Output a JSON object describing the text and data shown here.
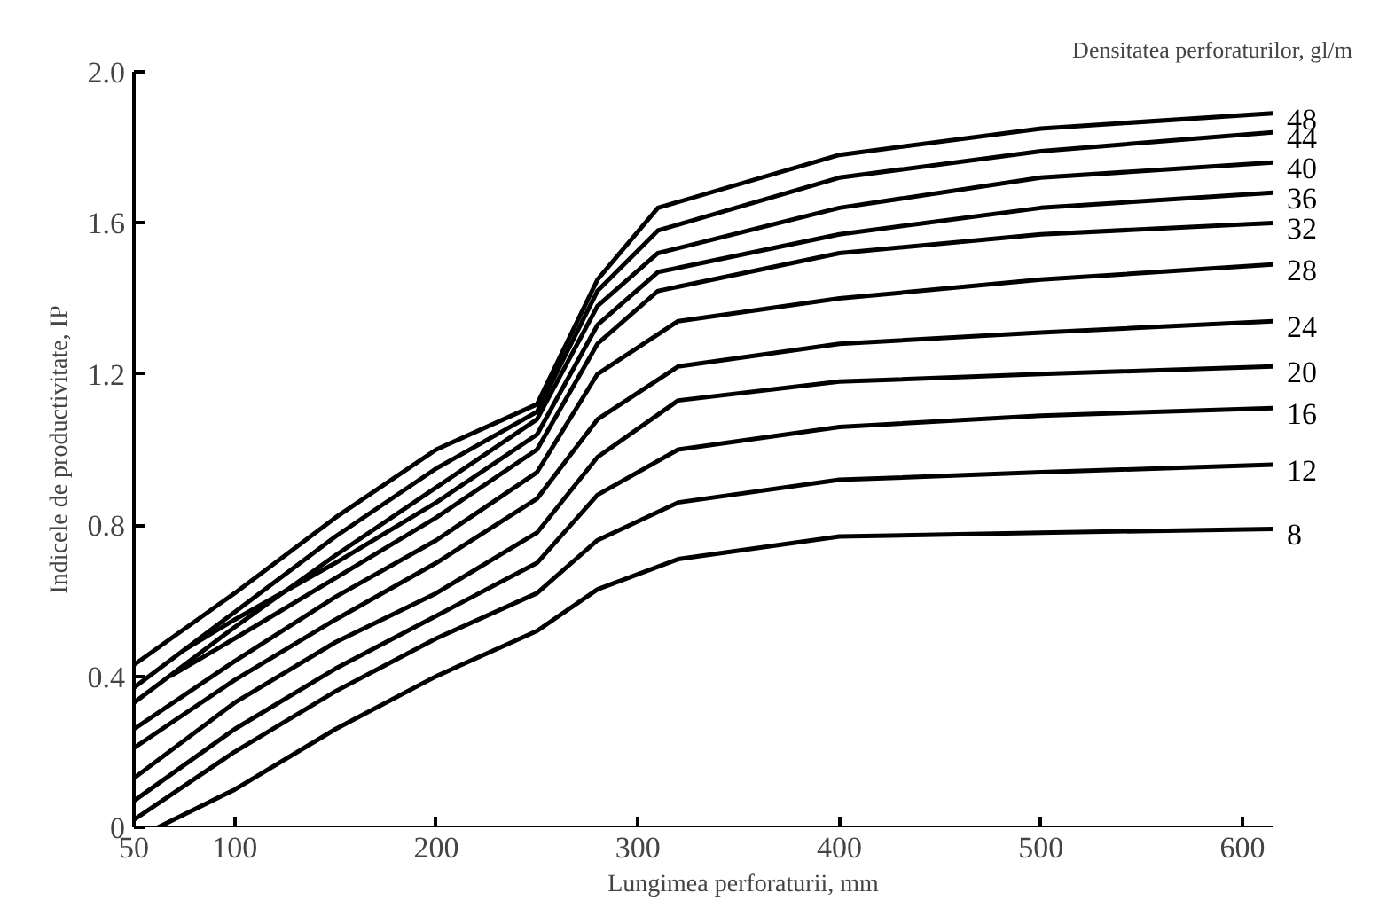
{
  "chart_data": {
    "type": "line",
    "xlabel": "Lungimea perforaturii, mm",
    "ylabel": "Indicele de productivitate, IP",
    "legend_title": "Densitatea perforaturilor, gl/m",
    "xlim": [
      50,
      615
    ],
    "xticks": [
      50,
      100,
      200,
      300,
      400,
      500,
      600
    ],
    "ylim": [
      0,
      2.0
    ],
    "yticks": [
      0,
      0.4,
      0.8,
      1.2,
      1.6,
      {
        "value": 2.0,
        "label": "2.0"
      }
    ],
    "grid": false,
    "line_style": "solid",
    "series": [
      {
        "name": "48",
        "color": "#000000",
        "x": [
          50,
          100,
          150,
          200,
          250,
          280,
          310,
          400,
          500,
          615
        ],
        "values": [
          0.43,
          0.62,
          0.82,
          1.0,
          1.12,
          1.45,
          1.64,
          1.78,
          1.85,
          1.89
        ]
      },
      {
        "name": "44",
        "color": "#000000",
        "x": [
          50,
          100,
          150,
          200,
          250,
          280,
          310,
          400,
          500,
          615
        ],
        "values": [
          0.37,
          0.57,
          0.77,
          0.95,
          1.1,
          1.42,
          1.58,
          1.72,
          1.79,
          1.84
        ]
      },
      {
        "name": "40",
        "color": "#000000",
        "x": [
          50,
          100,
          150,
          200,
          250,
          280,
          310,
          400,
          500,
          615
        ],
        "values": [
          0.33,
          0.53,
          0.72,
          0.9,
          1.08,
          1.38,
          1.52,
          1.64,
          1.72,
          1.76
        ]
      },
      {
        "name": "36",
        "color": "#000000",
        "x": [
          75,
          100,
          150,
          200,
          250,
          280,
          310,
          400,
          500,
          615
        ],
        "values": [
          0.47,
          0.55,
          0.7,
          0.86,
          1.04,
          1.33,
          1.47,
          1.57,
          1.64,
          1.68
        ]
      },
      {
        "name": "32",
        "color": "#000000",
        "x": [
          68,
          100,
          150,
          200,
          250,
          280,
          310,
          400,
          500,
          615
        ],
        "values": [
          0.4,
          0.5,
          0.66,
          0.82,
          1.0,
          1.28,
          1.42,
          1.52,
          1.57,
          1.6
        ]
      },
      {
        "name": "28",
        "color": "#000000",
        "x": [
          50,
          100,
          150,
          200,
          250,
          280,
          320,
          400,
          500,
          615
        ],
        "values": [
          0.26,
          0.44,
          0.61,
          0.76,
          0.94,
          1.2,
          1.34,
          1.4,
          1.45,
          1.49
        ]
      },
      {
        "name": "24",
        "color": "#000000",
        "x": [
          50,
          100,
          150,
          200,
          250,
          280,
          320,
          400,
          500,
          615
        ],
        "values": [
          0.21,
          0.39,
          0.55,
          0.7,
          0.87,
          1.08,
          1.22,
          1.28,
          1.31,
          1.34
        ]
      },
      {
        "name": "20",
        "color": "#000000",
        "x": [
          50,
          100,
          150,
          200,
          250,
          280,
          320,
          400,
          500,
          615
        ],
        "values": [
          0.13,
          0.33,
          0.49,
          0.62,
          0.78,
          0.98,
          1.13,
          1.18,
          1.2,
          1.22
        ]
      },
      {
        "name": "16",
        "color": "#000000",
        "x": [
          50,
          100,
          150,
          200,
          250,
          280,
          320,
          400,
          500,
          615
        ],
        "values": [
          0.07,
          0.26,
          0.42,
          0.56,
          0.7,
          0.88,
          1.0,
          1.06,
          1.09,
          1.11
        ]
      },
      {
        "name": "12",
        "color": "#000000",
        "x": [
          50,
          100,
          150,
          200,
          250,
          280,
          320,
          400,
          500,
          615
        ],
        "values": [
          0.02,
          0.2,
          0.36,
          0.5,
          0.62,
          0.76,
          0.86,
          0.92,
          0.94,
          0.96
        ]
      },
      {
        "name": "8",
        "color": "#000000",
        "x": [
          62,
          100,
          150,
          200,
          250,
          280,
          320,
          400,
          500,
          615
        ],
        "values": [
          0.0,
          0.1,
          0.26,
          0.4,
          0.52,
          0.63,
          0.71,
          0.77,
          0.78,
          0.79
        ]
      }
    ]
  }
}
